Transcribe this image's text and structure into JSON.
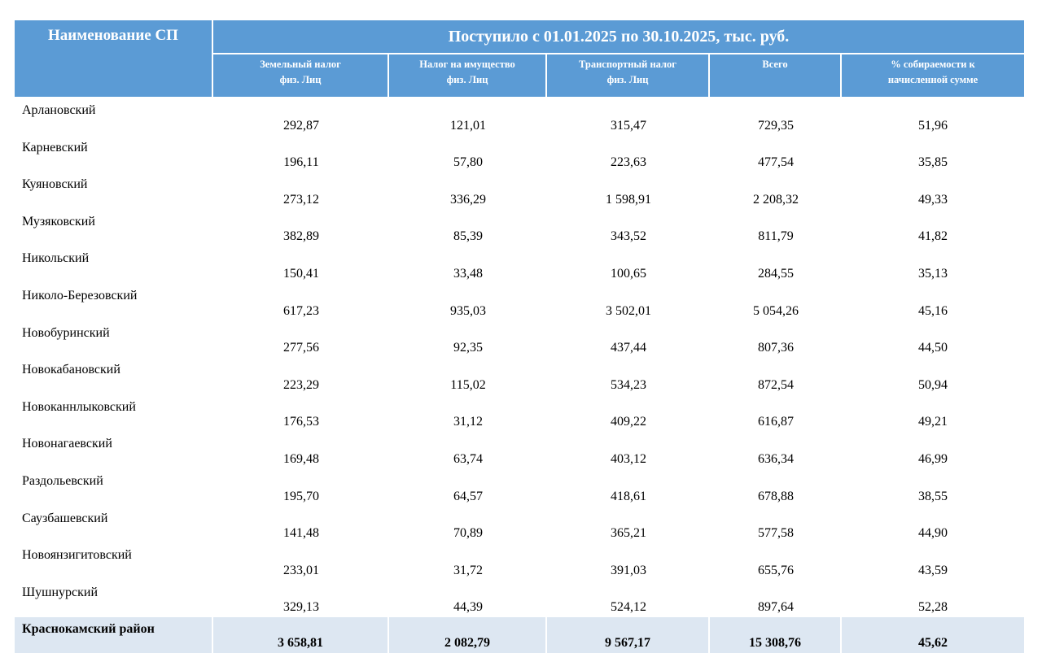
{
  "header": {
    "name_col": "Наименование СП",
    "period": "Поступило с 01.01.2025 по 30.10.2025, тыс. руб.",
    "columns": [
      {
        "line1": "Земельный налог",
        "line2": "физ. Лиц"
      },
      {
        "line1": "Налог на имущество",
        "line2": "физ. Лиц"
      },
      {
        "line1": "Транспортный налог",
        "line2": "физ. Лиц"
      },
      {
        "line1": "Всего",
        "line2": ""
      },
      {
        "line1": "% собираемости к",
        "line2": "начисленной сумме"
      }
    ]
  },
  "rows": [
    {
      "name": "Арлановский",
      "values": [
        "292,87",
        "121,01",
        "315,47",
        "729,35",
        "51,96"
      ]
    },
    {
      "name": "Карневский",
      "values": [
        "196,11",
        "57,80",
        "223,63",
        "477,54",
        "35,85"
      ]
    },
    {
      "name": "Куяновский",
      "values": [
        "273,12",
        "336,29",
        "1 598,91",
        "2 208,32",
        "49,33"
      ]
    },
    {
      "name": "Музяковский",
      "values": [
        "382,89",
        "85,39",
        "343,52",
        "811,79",
        "41,82"
      ]
    },
    {
      "name": "Никольский",
      "values": [
        "150,41",
        "33,48",
        "100,65",
        "284,55",
        "35,13"
      ]
    },
    {
      "name": "Николо-Березовский",
      "values": [
        "617,23",
        "935,03",
        "3 502,01",
        "5 054,26",
        "45,16"
      ]
    },
    {
      "name": "Новобуринский",
      "values": [
        "277,56",
        "92,35",
        "437,44",
        "807,36",
        "44,50"
      ]
    },
    {
      "name": "Новокабановский",
      "values": [
        "223,29",
        "115,02",
        "534,23",
        "872,54",
        "50,94"
      ]
    },
    {
      "name": "Новоканнлыковский",
      "values": [
        "176,53",
        "31,12",
        "409,22",
        "616,87",
        "49,21"
      ]
    },
    {
      "name": "Новонагаевский",
      "values": [
        "169,48",
        "63,74",
        "403,12",
        "636,34",
        "46,99"
      ]
    },
    {
      "name": "Раздольевский",
      "values": [
        "195,70",
        "64,57",
        "418,61",
        "678,88",
        "38,55"
      ]
    },
    {
      "name": "Саузбашевский",
      "values": [
        "141,48",
        "70,89",
        "365,21",
        "577,58",
        "44,90"
      ]
    },
    {
      "name": "Новоянзигитовский",
      "values": [
        "233,01",
        "31,72",
        "391,03",
        "655,76",
        "43,59"
      ]
    },
    {
      "name": "Шушнурский",
      "values": [
        "329,13",
        "44,39",
        "524,12",
        "897,64",
        "52,28"
      ]
    }
  ],
  "total": {
    "name": "Краснокамский район",
    "values": [
      "3 658,81",
      "2 082,79",
      "9 567,17",
      "15 308,76",
      "45,62"
    ]
  }
}
